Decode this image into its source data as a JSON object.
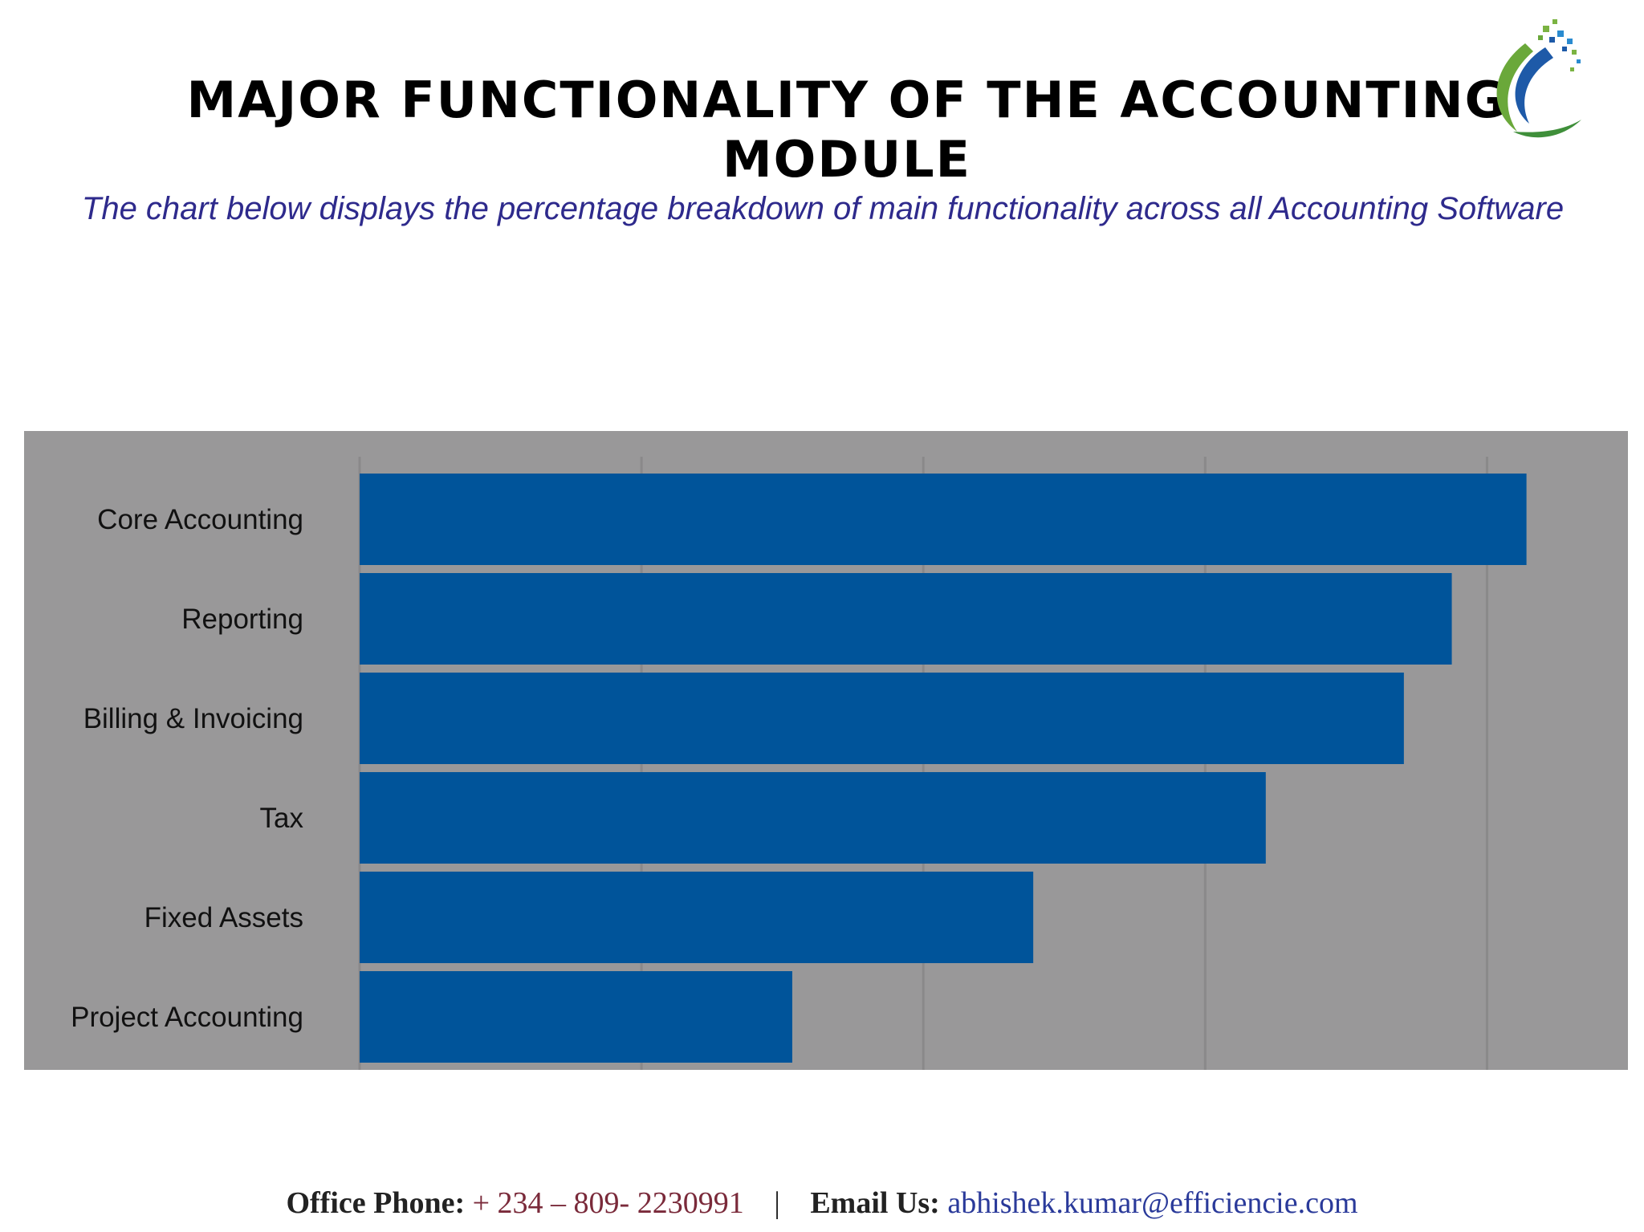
{
  "header": {
    "title": "MAJOR FUNCTIONALITY OF THE ACCOUNTING MODULE",
    "subtitle": "The chart below displays the percentage breakdown of main functionality across all Accounting Software"
  },
  "logo": {
    "icon": "swoosh-logo-icon"
  },
  "colors": {
    "bar": "#00549a",
    "panel": "#999899",
    "gridline": "#8a898a",
    "title": "#000000",
    "subtitle": "#2e2a8c"
  },
  "chart_data": {
    "type": "bar",
    "orientation": "horizontal",
    "title": "",
    "xlabel": "",
    "ylabel": "",
    "categories": [
      "Core Accounting",
      "Reporting",
      "Billing & Invoicing",
      "Tax",
      "Fixed Assets",
      "Project Accounting"
    ],
    "values": [
      82.8,
      77.5,
      74.1,
      64.3,
      47.8,
      30.7
    ],
    "xlim": [
      0,
      90
    ],
    "tick_labels_shown": false,
    "grid": true,
    "legend": "none"
  },
  "footer": {
    "phone_label": "Office Phone:",
    "phone": "+ 234 – 809- 2230991",
    "separator": "|",
    "email_label": "Email Us:",
    "email": "abhishek.kumar@efficiencie.com"
  }
}
